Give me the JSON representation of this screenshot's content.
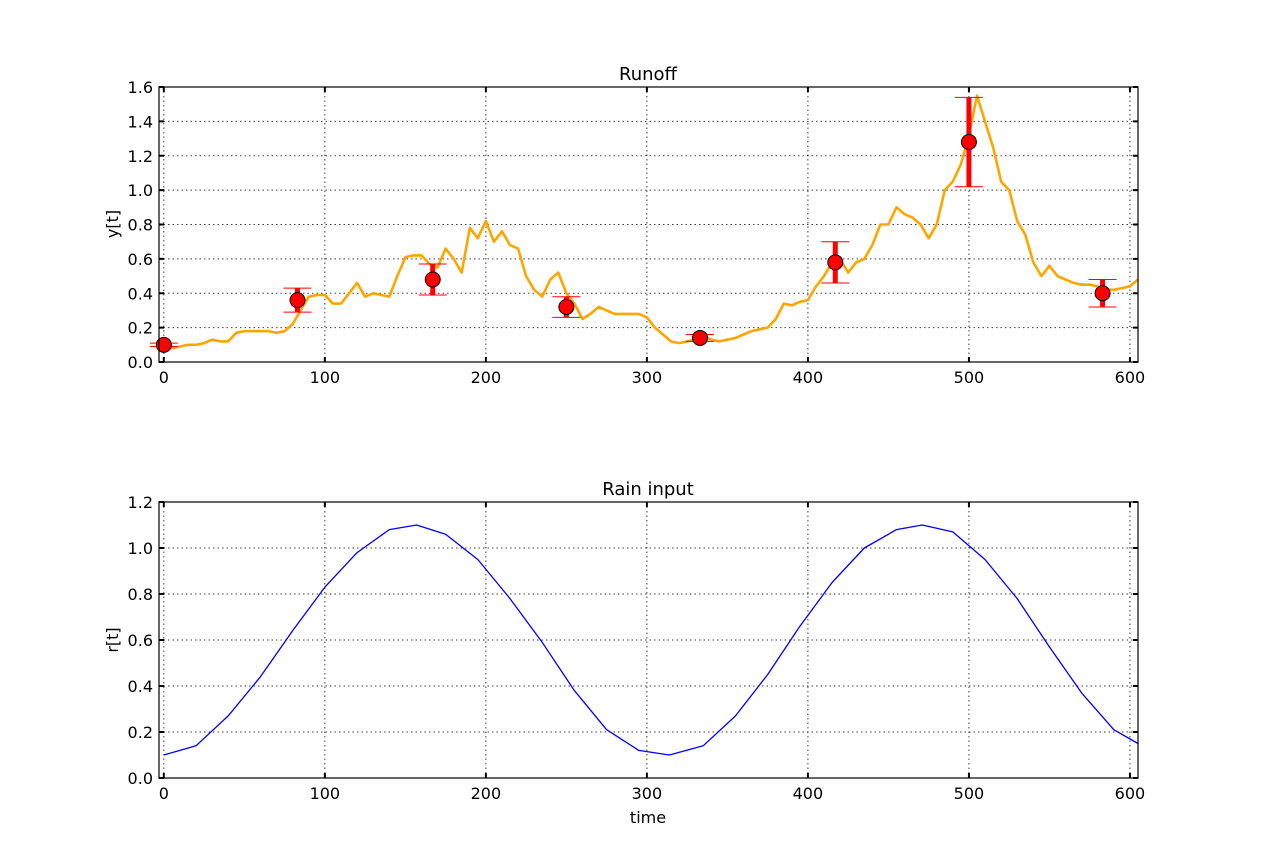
{
  "chart_data": [
    {
      "type": "line",
      "title": "Runoff",
      "xlabel": "",
      "ylabel": "y[t]",
      "xlim": [
        -3,
        605
      ],
      "ylim": [
        0.0,
        1.6
      ],
      "xticks": [
        0,
        100,
        200,
        300,
        400,
        500,
        600
      ],
      "yticks": [
        0.0,
        0.2,
        0.4,
        0.6,
        0.8,
        1.0,
        1.2,
        1.4,
        1.6
      ],
      "xtick_labels": [
        "0",
        "100",
        "200",
        "300",
        "400",
        "500",
        "600"
      ],
      "ytick_labels": [
        "0.0",
        "0.2",
        "0.4",
        "0.6",
        "0.8",
        "1.0",
        "1.2",
        "1.4",
        "1.6"
      ],
      "grid": true,
      "colors": {
        "line": "#ffa500",
        "markers": "#ff0000",
        "errorbars": "#ff0000"
      },
      "series": [
        {
          "kind": "line",
          "x": [
            0,
            5,
            10,
            15,
            20,
            25,
            30,
            35,
            40,
            45,
            50,
            55,
            60,
            65,
            70,
            75,
            80,
            85,
            90,
            95,
            100,
            105,
            110,
            115,
            120,
            125,
            130,
            135,
            140,
            145,
            150,
            155,
            160,
            165,
            170,
            175,
            180,
            185,
            190,
            195,
            200,
            205,
            210,
            215,
            220,
            225,
            230,
            235,
            240,
            245,
            250,
            255,
            260,
            265,
            270,
            275,
            280,
            285,
            290,
            295,
            300,
            305,
            310,
            315,
            320,
            325,
            330,
            335,
            340,
            345,
            350,
            355,
            360,
            365,
            370,
            375,
            380,
            385,
            390,
            395,
            400,
            405,
            410,
            415,
            420,
            425,
            430,
            435,
            440,
            445,
            450,
            455,
            460,
            465,
            470,
            475,
            480,
            485,
            490,
            495,
            500,
            505,
            510,
            515,
            520,
            525,
            530,
            535,
            540,
            545,
            550,
            555,
            560,
            565,
            570,
            575,
            580,
            585,
            590,
            595,
            600,
            605
          ],
          "y": [
            0.1,
            0.08,
            0.09,
            0.1,
            0.1,
            0.11,
            0.13,
            0.12,
            0.12,
            0.17,
            0.18,
            0.18,
            0.18,
            0.18,
            0.17,
            0.18,
            0.22,
            0.3,
            0.38,
            0.39,
            0.39,
            0.34,
            0.34,
            0.4,
            0.46,
            0.38,
            0.4,
            0.39,
            0.38,
            0.5,
            0.61,
            0.62,
            0.62,
            0.57,
            0.55,
            0.66,
            0.6,
            0.52,
            0.78,
            0.72,
            0.82,
            0.7,
            0.76,
            0.68,
            0.66,
            0.5,
            0.42,
            0.38,
            0.48,
            0.52,
            0.4,
            0.34,
            0.25,
            0.28,
            0.32,
            0.3,
            0.28,
            0.28,
            0.28,
            0.28,
            0.26,
            0.2,
            0.16,
            0.12,
            0.11,
            0.12,
            0.13,
            0.15,
            0.13,
            0.12,
            0.13,
            0.14,
            0.16,
            0.18,
            0.19,
            0.2,
            0.25,
            0.34,
            0.33,
            0.35,
            0.36,
            0.44,
            0.5,
            0.58,
            0.6,
            0.52,
            0.58,
            0.6,
            0.68,
            0.8,
            0.8,
            0.9,
            0.86,
            0.84,
            0.8,
            0.72,
            0.8,
            1.0,
            1.05,
            1.15,
            1.32,
            1.55,
            1.4,
            1.25,
            1.05,
            1.0,
            0.82,
            0.74,
            0.58,
            0.5,
            0.56,
            0.5,
            0.48,
            0.46,
            0.45,
            0.45,
            0.44,
            0.42,
            0.42,
            0.43,
            0.44,
            0.48
          ]
        },
        {
          "kind": "errorbar",
          "x": [
            0,
            83,
            167,
            250,
            333,
            417,
            500,
            583
          ],
          "y": [
            0.1,
            0.36,
            0.48,
            0.32,
            0.14,
            0.58,
            1.28,
            0.4
          ],
          "yerr": [
            0.01,
            0.07,
            0.09,
            0.06,
            0.02,
            0.12,
            0.26,
            0.08
          ]
        }
      ]
    },
    {
      "type": "line",
      "title": "Rain input",
      "xlabel": "time",
      "ylabel": "r[t]",
      "xlim": [
        -3,
        605
      ],
      "ylim": [
        0.0,
        1.2
      ],
      "xticks": [
        0,
        100,
        200,
        300,
        400,
        500,
        600
      ],
      "yticks": [
        0.0,
        0.2,
        0.4,
        0.6,
        0.8,
        1.0,
        1.2
      ],
      "xtick_labels": [
        "0",
        "100",
        "200",
        "300",
        "400",
        "500",
        "600"
      ],
      "ytick_labels": [
        "0.0",
        "0.2",
        "0.4",
        "0.6",
        "0.8",
        "1.0",
        "1.2"
      ],
      "grid": true,
      "colors": {
        "line": "#0000ff"
      },
      "series": [
        {
          "kind": "line",
          "x": [
            0,
            20,
            40,
            60,
            80,
            100,
            120,
            140,
            157,
            175,
            195,
            215,
            235,
            255,
            275,
            295,
            314,
            335,
            355,
            375,
            395,
            415,
            435,
            455,
            471,
            490,
            510,
            530,
            550,
            570,
            590,
            605
          ],
          "y": [
            0.1,
            0.14,
            0.27,
            0.44,
            0.64,
            0.83,
            0.98,
            1.08,
            1.1,
            1.06,
            0.95,
            0.78,
            0.59,
            0.38,
            0.21,
            0.12,
            0.1,
            0.14,
            0.27,
            0.45,
            0.66,
            0.85,
            1.0,
            1.08,
            1.1,
            1.07,
            0.95,
            0.78,
            0.57,
            0.37,
            0.21,
            0.15
          ]
        }
      ]
    }
  ]
}
